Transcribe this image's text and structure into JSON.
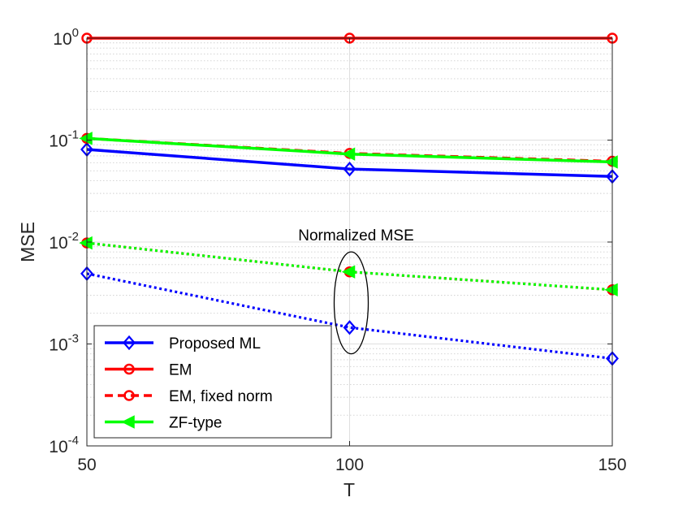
{
  "chart_data": {
    "type": "line",
    "title": "",
    "xlabel": "T",
    "ylabel": "MSE",
    "x": [
      50,
      100,
      150
    ],
    "xlim": [
      50,
      150
    ],
    "ylim": [
      0.0001,
      1
    ],
    "yscale": "log",
    "grid": true,
    "xticks": [
      {
        "value": 50,
        "label": "50"
      },
      {
        "value": 100,
        "label": "100"
      },
      {
        "value": 150,
        "label": "150"
      }
    ],
    "yticks": [
      {
        "value": 0.0001,
        "base": "10",
        "exp": "-4"
      },
      {
        "value": 0.001,
        "base": "10",
        "exp": "-3"
      },
      {
        "value": 0.01,
        "base": "10",
        "exp": "-2"
      },
      {
        "value": 0.1,
        "base": "10",
        "exp": "-1"
      },
      {
        "value": 1,
        "base": "10",
        "exp": "0"
      }
    ],
    "series": [
      {
        "name": "Proposed ML",
        "kind": "mse",
        "color": "#0000ff",
        "dash": "solid",
        "marker": "diamond",
        "in_legend": true,
        "values": [
          0.081,
          0.052,
          0.044
        ]
      },
      {
        "name": "EM",
        "kind": "mse",
        "color": "#ff0000",
        "dash": "solid",
        "marker": "circle",
        "in_legend": true,
        "values": [
          1.0,
          1.0,
          1.0
        ]
      },
      {
        "name": "EM, fixed norm",
        "kind": "mse",
        "color": "#ff0000",
        "dash": "dashed",
        "marker": "circle",
        "in_legend": true,
        "values": [
          0.104,
          0.074,
          0.062
        ]
      },
      {
        "name": "ZF-type",
        "kind": "mse",
        "color": "#00ff00",
        "dash": "solid",
        "marker": "triangle-left",
        "in_legend": true,
        "values": [
          0.104,
          0.073,
          0.061
        ]
      },
      {
        "name": "Proposed ML",
        "kind": "normalized",
        "color": "#0000ff",
        "dash": "dotted",
        "marker": "diamond",
        "in_legend": false,
        "values": [
          0.0049,
          0.00145,
          0.00072
        ]
      },
      {
        "name": "EM",
        "kind": "normalized",
        "color": "#ff0000",
        "dash": "dotted",
        "marker": "circle",
        "in_legend": false,
        "values": [
          0.0098,
          0.0051,
          0.0034
        ]
      },
      {
        "name": "ZF-type",
        "kind": "normalized",
        "color": "#00ff00",
        "dash": "dotted",
        "marker": "triangle-left",
        "in_legend": false,
        "values": [
          0.0098,
          0.0051,
          0.0034
        ]
      }
    ],
    "annotation": {
      "text": "Normalized MSE",
      "x": 100,
      "y_range": [
        0.0008,
        0.008
      ]
    },
    "legend": {
      "position": "bottom-left"
    }
  }
}
